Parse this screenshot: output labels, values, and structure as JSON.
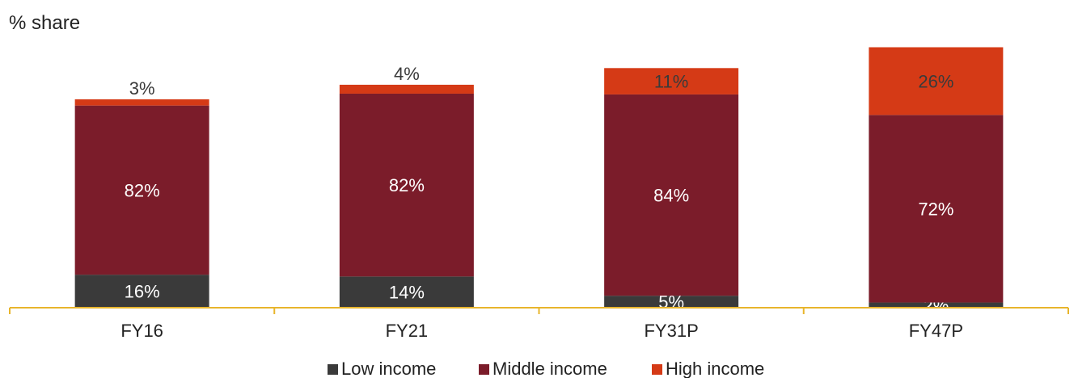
{
  "chart_data": {
    "type": "bar",
    "stacked": true,
    "ylabel": "% share",
    "categories": [
      "FY16",
      "FY21",
      "FY31P",
      "FY47P"
    ],
    "totals_relative": [
      1.0,
      1.07,
      1.15,
      1.25
    ],
    "series": [
      {
        "name": "Low income",
        "values": [
          16,
          14,
          5,
          2
        ],
        "labels": [
          "16%",
          "14%",
          "5%",
          "2%"
        ],
        "color": "#3a3a3a"
      },
      {
        "name": "Middle income",
        "values": [
          82,
          82,
          84,
          72
        ],
        "labels": [
          "82%",
          "82%",
          "84%",
          "72%"
        ],
        "color": "#7b1c2a"
      },
      {
        "name": "High income",
        "values": [
          3,
          4,
          11,
          26
        ],
        "labels": [
          "3%",
          "4%",
          "11%",
          "26%"
        ],
        "color": "#d53a16"
      }
    ],
    "axis_color": "#e8b52c",
    "grid": false,
    "legend_position": "bottom"
  }
}
